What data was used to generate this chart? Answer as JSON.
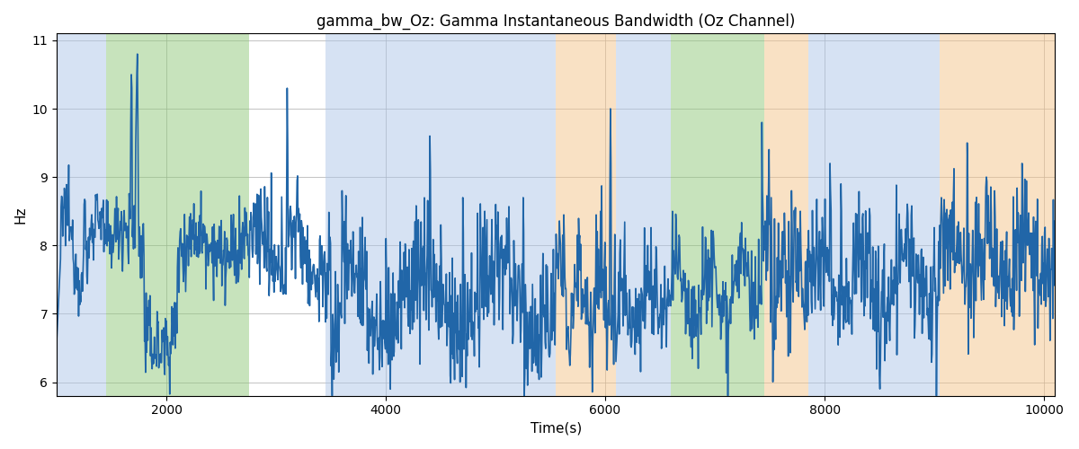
{
  "title": "gamma_bw_Oz: Gamma Instantaneous Bandwidth (Oz Channel)",
  "xlabel": "Time(s)",
  "ylabel": "Hz",
  "xlim": [
    1000,
    10100
  ],
  "ylim": [
    5.8,
    11.1
  ],
  "yticks": [
    6,
    7,
    8,
    9,
    10,
    11
  ],
  "xticks": [
    2000,
    4000,
    6000,
    8000,
    10000
  ],
  "line_color": "#2166a8",
  "line_width": 1.2,
  "grid_color": "#aaaaaa",
  "background_color": "#ffffff",
  "bands": [
    {
      "xmin": 1000,
      "xmax": 1450,
      "color": "#aec6e8",
      "alpha": 0.5
    },
    {
      "xmin": 1450,
      "xmax": 2750,
      "color": "#90c97a",
      "alpha": 0.5
    },
    {
      "xmin": 2750,
      "xmax": 3450,
      "color": "#ffffff",
      "alpha": 0.0
    },
    {
      "xmin": 3450,
      "xmax": 5550,
      "color": "#aec6e8",
      "alpha": 0.5
    },
    {
      "xmin": 5550,
      "xmax": 6100,
      "color": "#f5c48a",
      "alpha": 0.5
    },
    {
      "xmin": 6100,
      "xmax": 6600,
      "color": "#aec6e8",
      "alpha": 0.5
    },
    {
      "xmin": 6600,
      "xmax": 7450,
      "color": "#90c97a",
      "alpha": 0.5
    },
    {
      "xmin": 7450,
      "xmax": 7850,
      "color": "#f5c48a",
      "alpha": 0.5
    },
    {
      "xmin": 7850,
      "xmax": 9050,
      "color": "#aec6e8",
      "alpha": 0.5
    },
    {
      "xmin": 9050,
      "xmax": 10100,
      "color": "#f5c48a",
      "alpha": 0.5
    }
  ],
  "seed": 12345,
  "t_start": 1000,
  "t_end": 10100,
  "n_points": 1820
}
